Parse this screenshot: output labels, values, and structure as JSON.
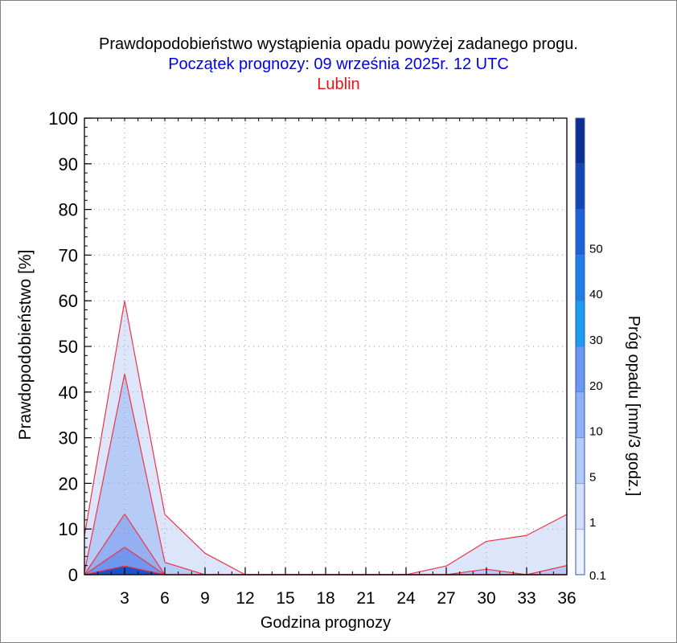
{
  "chart_data": {
    "type": "area",
    "title": "Prawdopodobieństwo wystąpienia opadu powyżej zadanego progu.",
    "subtitle": "Początek prognozy: 09 września 2025r. 12 UTC",
    "location": "Lublin",
    "xlabel": "Godzina prognozy",
    "ylabel": "Prawdopodobieństwo [%]",
    "colorbar_label": "Próg opadu [mm/3 godz.]",
    "x": [
      0,
      3,
      6,
      9,
      12,
      15,
      18,
      21,
      24,
      27,
      30,
      33,
      36
    ],
    "x_ticks": [
      "3",
      "6",
      "9",
      "12",
      "15",
      "18",
      "21",
      "24",
      "27",
      "30",
      "33",
      "36"
    ],
    "y_ticks": [
      "0",
      "10",
      "20",
      "30",
      "40",
      "50",
      "60",
      "70",
      "80",
      "90",
      "100"
    ],
    "xlim": [
      0,
      36
    ],
    "ylim": [
      0,
      100
    ],
    "grid": true,
    "series": [
      {
        "name": "0.1",
        "color": "#dde5fb",
        "values": [
          8.5,
          60,
          13.2,
          4.7,
          0,
          0,
          0,
          0,
          0,
          1.9,
          7.3,
          8.6,
          13.2
        ]
      },
      {
        "name": "1",
        "color": "#b7cbf7",
        "values": [
          0.5,
          44,
          2.7,
          0,
          0,
          0,
          0,
          0,
          0,
          0,
          1.2,
          0,
          2
        ]
      },
      {
        "name": "5",
        "color": "#95b0f2",
        "values": [
          0,
          13.3,
          0,
          0,
          0,
          0,
          0,
          0,
          0,
          0,
          0,
          0,
          0
        ]
      },
      {
        "name": "10",
        "color": "#7196ef",
        "values": [
          0,
          6,
          0,
          0,
          0,
          0,
          0,
          0,
          0,
          0,
          0,
          0,
          0
        ]
      },
      {
        "name": "20",
        "color": "#1f50c8",
        "values": [
          0,
          1.9,
          0,
          0,
          0,
          0,
          0,
          0,
          0,
          0,
          0,
          0,
          0
        ]
      }
    ],
    "colorbar": {
      "labels": [
        "0.1",
        "1",
        "5",
        "10",
        "20",
        "30",
        "40",
        "50"
      ],
      "colors": [
        "#eaf0fd",
        "#d4e0fb",
        "#b3c9f7",
        "#8fb0f3",
        "#6b97ef",
        "#1a9cf0",
        "#1e7ee6",
        "#1c62d6",
        "#1446b4",
        "#0c2e8e"
      ]
    }
  },
  "colors": {
    "outline": "#ee3344",
    "title": "#000000",
    "subtitle": "#0000ee",
    "location": "#ee1111"
  }
}
